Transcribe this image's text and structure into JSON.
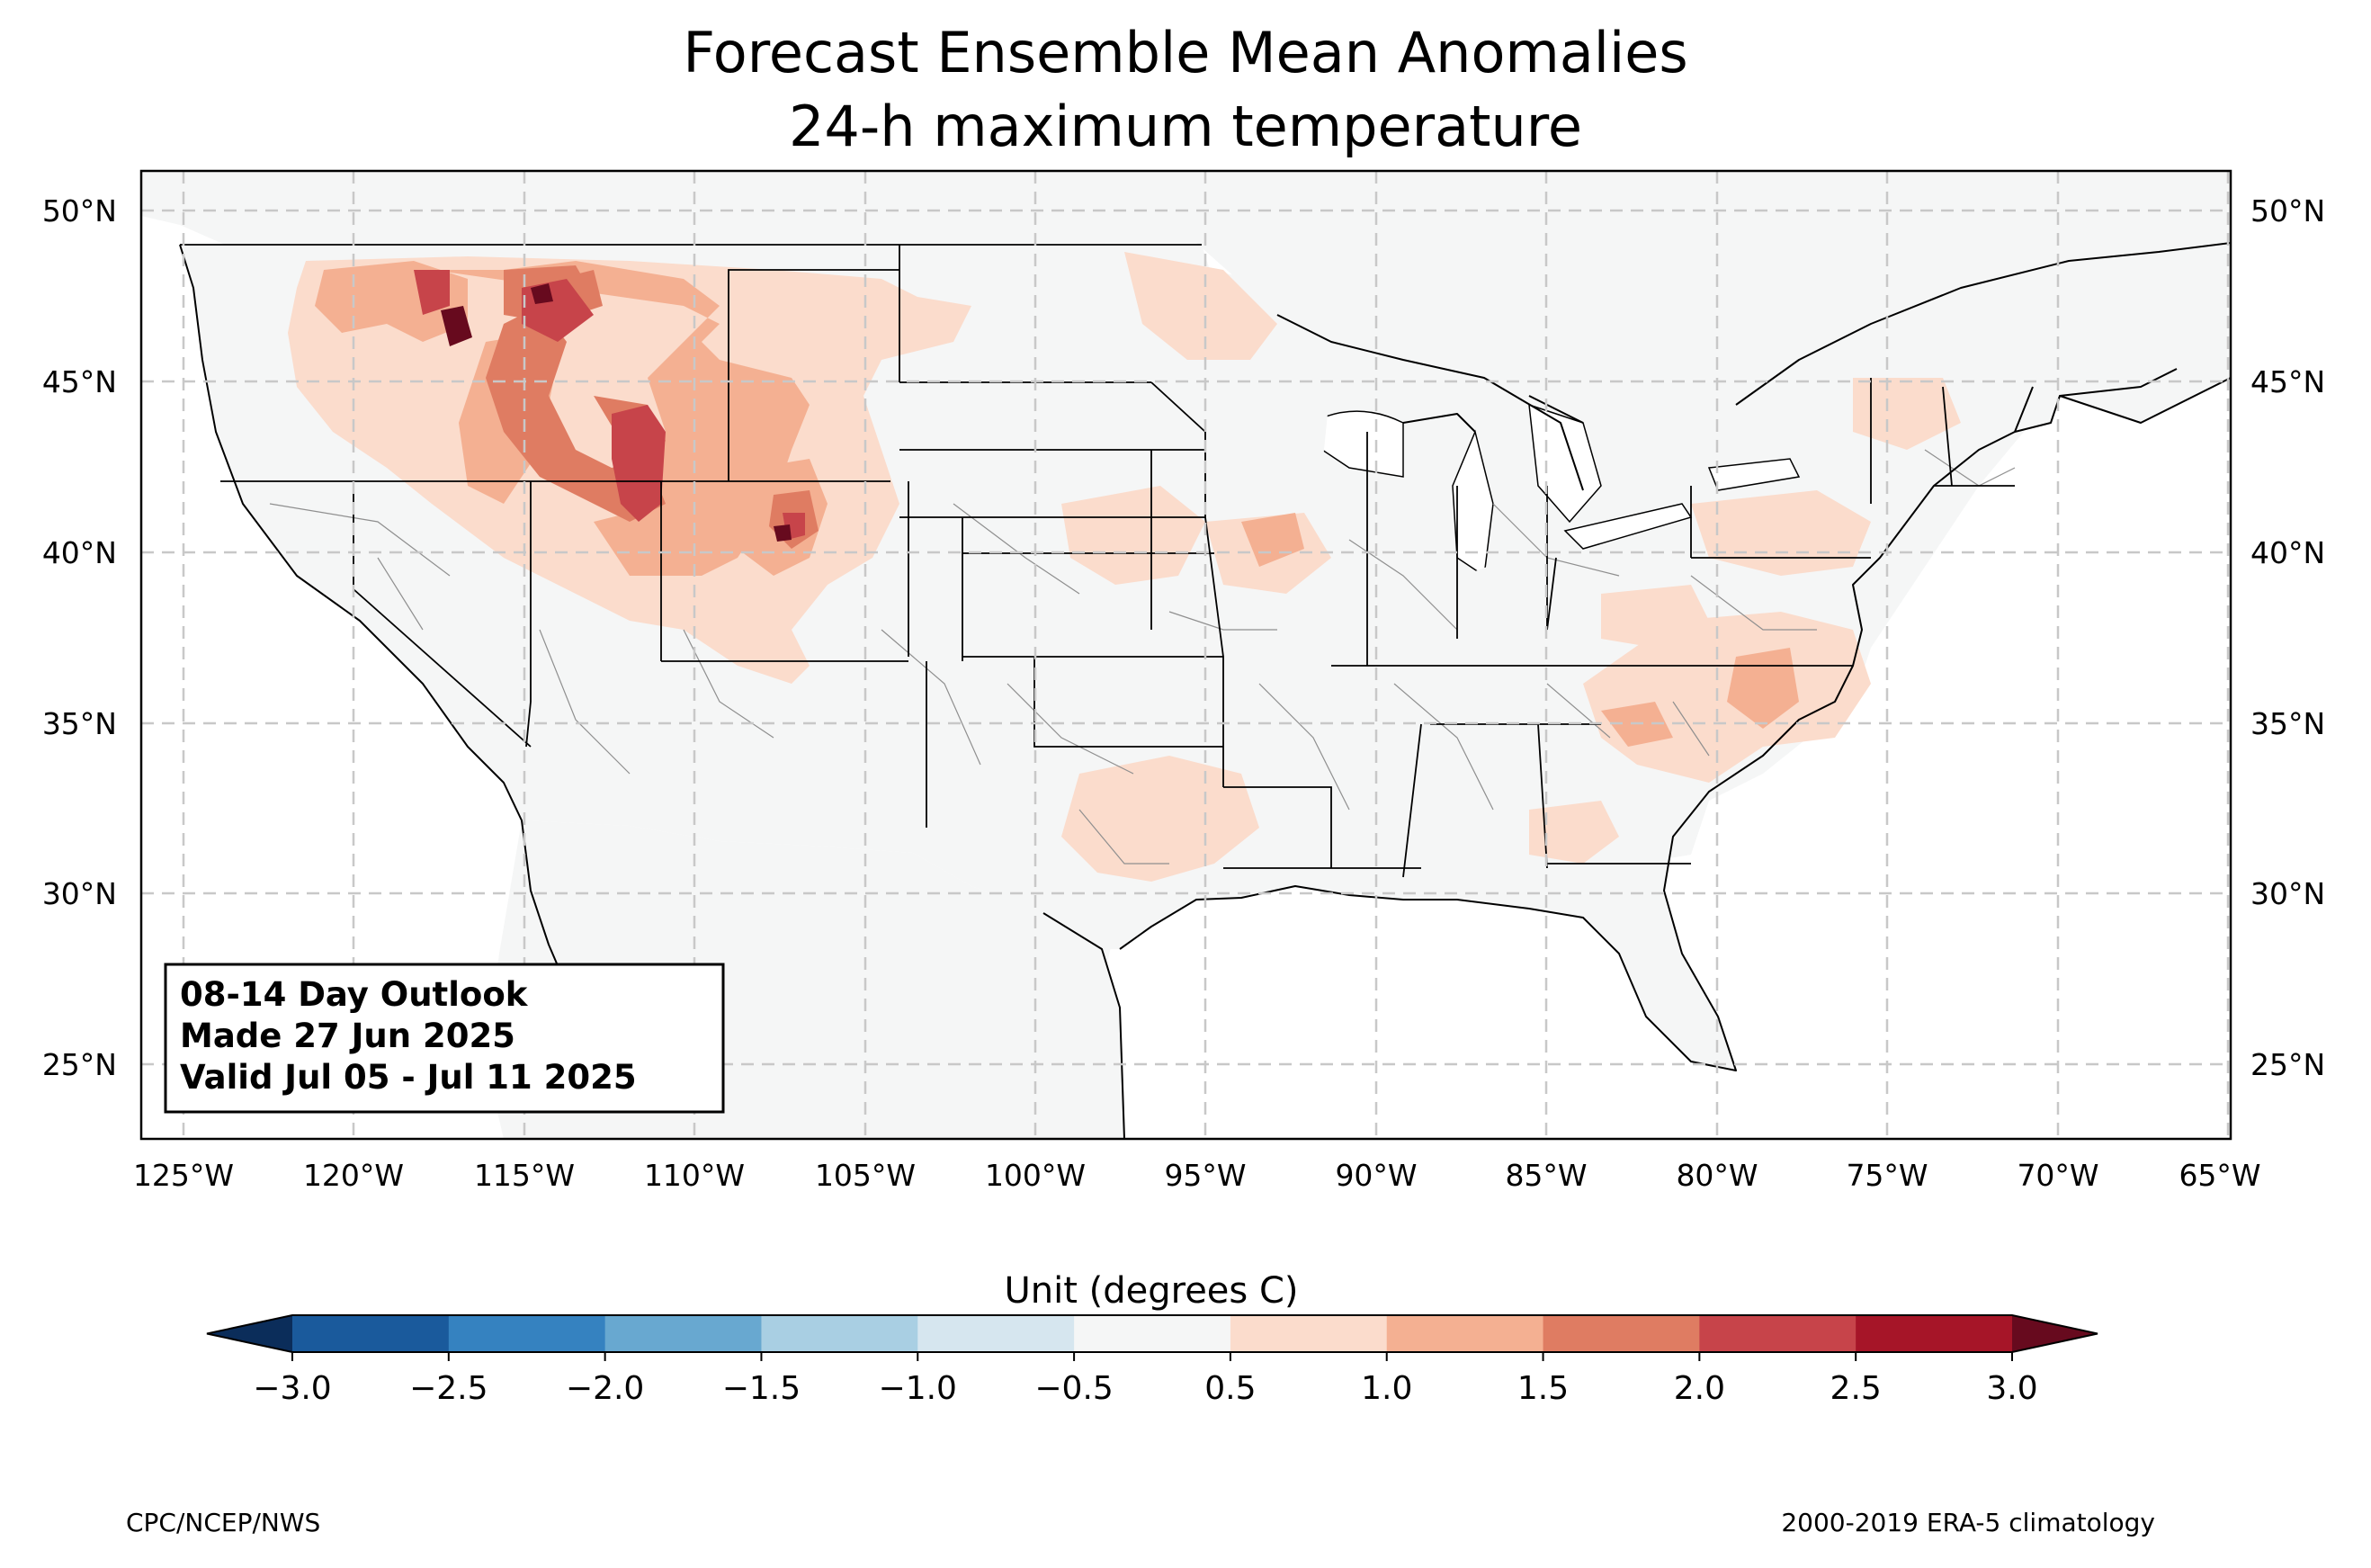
{
  "title": {
    "line1": "Forecast Ensemble Mean Anomalies",
    "line2": "24-h maximum temperature"
  },
  "map": {
    "lat_labels": [
      "50°N",
      "45°N",
      "40°N",
      "35°N",
      "30°N",
      "25°N"
    ],
    "lon_labels": [
      "125°W",
      "120°W",
      "115°W",
      "110°W",
      "105°W",
      "100°W",
      "95°W",
      "90°W",
      "85°W",
      "80°W",
      "75°W",
      "70°W",
      "65°W"
    ],
    "land_color": "#f5f6f6",
    "info_box": {
      "line1": "08-14 Day Outlook",
      "line2": "Made 27 Jun 2025",
      "line3": "Valid Jul 05 - Jul 11 2025"
    }
  },
  "colorbar": {
    "title": "Unit (degrees C)",
    "levels": [
      -3.0,
      -2.5,
      -2.0,
      -1.5,
      -1.0,
      -0.5,
      0.5,
      1.0,
      1.5,
      2.0,
      2.5,
      3.0
    ],
    "tick_labels": [
      "−3.0",
      "−2.5",
      "−2.0",
      "−1.5",
      "−1.0",
      "−0.5",
      "0.5",
      "1.0",
      "1.5",
      "2.0",
      "2.5",
      "3.0"
    ],
    "colors": [
      "#1a5a9c",
      "#3582c0",
      "#68a8d0",
      "#a9cfe3",
      "#d6e6ef",
      "#f5f6f6",
      "#fbdccc",
      "#f4b092",
      "#df7c62",
      "#c7444a",
      "#a61528"
    ],
    "under_color": "#0b2d5a",
    "over_color": "#670a1e"
  },
  "credits": {
    "left": "CPC/NCEP/NWS",
    "right": "2000-2019 ERA-5 climatology"
  }
}
